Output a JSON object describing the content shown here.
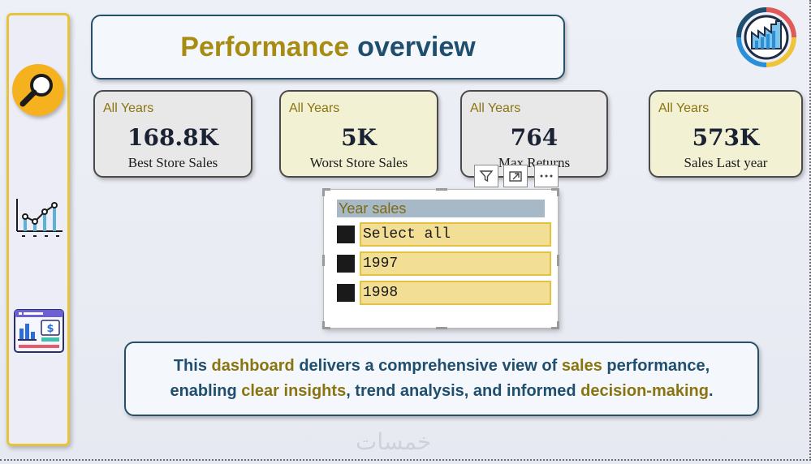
{
  "title": {
    "word1": "Performance",
    "word2": "overview"
  },
  "sidebar": {
    "items": [
      {
        "icon": "search-icon",
        "color": "#f5b21e"
      },
      {
        "icon": "line-chart-icon"
      },
      {
        "icon": "dashboard-icon"
      }
    ]
  },
  "kpis": [
    {
      "period": "All Years",
      "value": "168.8K",
      "label": "Best Store Sales",
      "bg": "#e8e8e8"
    },
    {
      "period": "All Years",
      "value": "5K",
      "label": "Worst Store Sales",
      "bg": "#f3f1d4"
    },
    {
      "period": "All Years",
      "value": "764",
      "label": "Max Returns",
      "bg": "#e8e8e8"
    },
    {
      "period": "All Years",
      "value": "573K",
      "label": "Sales Last year",
      "bg": "#f3f1d4"
    }
  ],
  "slicer": {
    "header": "Year sales",
    "items": [
      "Select all",
      "1997",
      "1998"
    ]
  },
  "message": {
    "line1": [
      {
        "text": "This ",
        "hl": false
      },
      {
        "text": "dashboard",
        "hl": true
      },
      {
        "text": " delivers a comprehensive view of ",
        "hl": false
      },
      {
        "text": "sales",
        "hl": true
      },
      {
        "text": " performance,",
        "hl": false
      }
    ],
    "line2": [
      {
        "text": "enabling ",
        "hl": false
      },
      {
        "text": "clear insights",
        "hl": true
      },
      {
        "text": ", trend analysis, and informed ",
        "hl": false
      },
      {
        "text": "decision-making",
        "hl": true
      },
      {
        "text": ".",
        "hl": false
      }
    ]
  },
  "watermark": "خمسات",
  "colors": {
    "accent_gold": "#a88c12",
    "accent_blue": "#1f4e6e",
    "sidebar_border": "#e6c53d"
  }
}
